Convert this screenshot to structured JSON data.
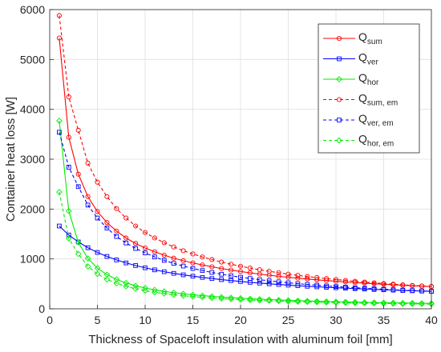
{
  "chart_data": {
    "type": "line",
    "title": "",
    "xlabel": "Thickness of Spaceloft insulation with aluminum foil [mm]",
    "ylabel": "Container heat loss [W]",
    "xlim": [
      0,
      40
    ],
    "ylim": [
      0,
      6000
    ],
    "xticks": [
      0,
      5,
      10,
      15,
      20,
      25,
      30,
      35,
      40
    ],
    "yticks": [
      0,
      1000,
      2000,
      3000,
      4000,
      5000,
      6000
    ],
    "grid": true,
    "legend_position": "top-right",
    "x": [
      1,
      2,
      3,
      4,
      5,
      6,
      7,
      8,
      9,
      10,
      11,
      12,
      13,
      14,
      15,
      16,
      17,
      18,
      19,
      20,
      21,
      22,
      23,
      24,
      25,
      26,
      27,
      28,
      29,
      30,
      31,
      32,
      33,
      34,
      35,
      36,
      37,
      38,
      39,
      40
    ],
    "series": [
      {
        "name": "Q",
        "sub": "sum",
        "color": "#ff0000",
        "dash": "solid",
        "marker": "circle",
        "values": [
          5430,
          3440,
          2700,
          2250,
          1950,
          1730,
          1560,
          1420,
          1310,
          1220,
          1145,
          1075,
          1015,
          965,
          920,
          880,
          842,
          808,
          777,
          748,
          721,
          696,
          673,
          652,
          632,
          614,
          597,
          581,
          566,
          552,
          539,
          526,
          514,
          503,
          492,
          482,
          472,
          463,
          454,
          446
        ]
      },
      {
        "name": "Q",
        "sub": "ver",
        "color": "#0000ff",
        "dash": "solid",
        "marker": "square",
        "values": [
          1660,
          1480,
          1340,
          1225,
          1130,
          1050,
          980,
          920,
          868,
          822,
          781,
          744,
          711,
          681,
          654,
          629,
          606,
          585,
          566,
          548,
          531,
          516,
          501,
          488,
          475,
          463,
          452,
          441,
          431,
          422,
          413,
          405,
          397,
          389,
          382,
          375,
          368,
          362,
          356,
          350
        ]
      },
      {
        "name": "Q",
        "sub": "hor",
        "color": "#00ee00",
        "dash": "solid",
        "marker": "diamond",
        "values": [
          3770,
          1960,
          1330,
          1010,
          815,
          685,
          590,
          518,
          462,
          417,
          380,
          349,
          323,
          301,
          281,
          264,
          249,
          235,
          223,
          212,
          202,
          193,
          185,
          177,
          170,
          164,
          158,
          152,
          147,
          142,
          138,
          134,
          130,
          126,
          123,
          120,
          117,
          114,
          111,
          108
        ]
      },
      {
        "name": "Q",
        "sub": "sum, em",
        "color": "#ff0000",
        "dash": "dashed",
        "marker": "circle",
        "values": [
          5880,
          4250,
          3580,
          2920,
          2540,
          2250,
          2010,
          1820,
          1660,
          1530,
          1420,
          1325,
          1240,
          1165,
          1100,
          1040,
          987,
          938,
          894,
          854,
          817,
          783,
          752,
          723,
          696,
          671,
          648,
          626,
          606,
          587,
          569,
          552,
          536,
          521,
          507,
          494,
          481,
          469,
          458,
          448
        ]
      },
      {
        "name": "Q",
        "sub": "ver, em",
        "color": "#0000ff",
        "dash": "dashed",
        "marker": "square",
        "values": [
          3540,
          2840,
          2450,
          2080,
          1820,
          1620,
          1450,
          1320,
          1210,
          1120,
          1040,
          971,
          910,
          857,
          809,
          767,
          729,
          694,
          662,
          633,
          607,
          583,
          561,
          541,
          522,
          504,
          488,
          473,
          459,
          446,
          434,
          422,
          411,
          401,
          392,
          383,
          374,
          366,
          358,
          351
        ]
      },
      {
        "name": "Q",
        "sub": "hor, em",
        "color": "#00ee00",
        "dash": "dashed",
        "marker": "diamond",
        "values": [
          2340,
          1410,
          1100,
          850,
          700,
          590,
          510,
          450,
          402,
          363,
          331,
          304,
          281,
          262,
          245,
          230,
          217,
          205,
          194,
          185,
          176,
          168,
          161,
          154,
          148,
          142,
          137,
          132,
          128,
          124,
          120,
          116,
          113,
          110,
          107,
          104,
          101,
          99,
          97,
          95
        ]
      }
    ]
  }
}
